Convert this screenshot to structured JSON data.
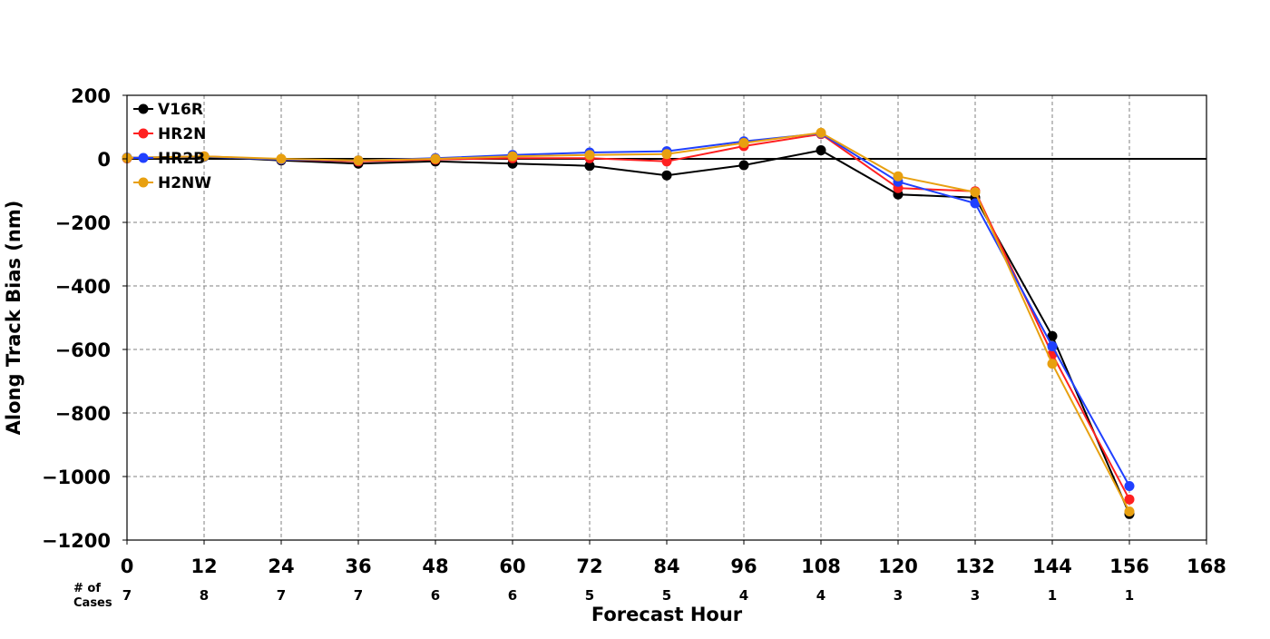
{
  "chart_data": {
    "type": "line",
    "title": "",
    "xlabel": "Forecast Hour",
    "ylabel": "Along Track Bias (nm)",
    "xlim": [
      0,
      168
    ],
    "ylim": [
      -1200,
      200
    ],
    "x_ticks": [
      0,
      12,
      24,
      36,
      48,
      60,
      72,
      84,
      96,
      108,
      120,
      132,
      144,
      156,
      168
    ],
    "y_ticks": [
      -1200,
      -1000,
      -800,
      -600,
      -400,
      -200,
      0,
      200
    ],
    "grid": true,
    "grid_style": "dashed",
    "zero_line": true,
    "legend_position": "top-left",
    "x": [
      0,
      12,
      24,
      36,
      48,
      60,
      72,
      84,
      96,
      108,
      120,
      132,
      144,
      156
    ],
    "series": [
      {
        "name": "V16R",
        "color": "#000000",
        "values": [
          2,
          7,
          -5,
          -15,
          -8,
          -15,
          -22,
          -52,
          -20,
          27,
          -112,
          -122,
          -558,
          -1118
        ]
      },
      {
        "name": "HR2N",
        "color": "#ff2020",
        "values": [
          2,
          8,
          -2,
          -8,
          -2,
          2,
          2,
          -8,
          40,
          78,
          -92,
          -102,
          -615,
          -1072
        ]
      },
      {
        "name": "HR2B",
        "color": "#2040ff",
        "values": [
          4,
          7,
          -2,
          -5,
          2,
          12,
          20,
          24,
          55,
          80,
          -72,
          -140,
          -590,
          -1030
        ]
      },
      {
        "name": "H2NW",
        "color": "#e8a010",
        "values": [
          3,
          8,
          0,
          -5,
          0,
          8,
          12,
          15,
          50,
          82,
          -55,
          -105,
          -645,
          -1110
        ]
      }
    ],
    "cases": {
      "header": "# of\nCases",
      "header_line1": "# of",
      "header_line2": "Cases",
      "x": [
        0,
        12,
        24,
        36,
        48,
        60,
        72,
        84,
        96,
        108,
        120,
        132,
        144,
        156
      ],
      "values": [
        "7",
        "8",
        "7",
        "7",
        "6",
        "6",
        "5",
        "5",
        "4",
        "4",
        "3",
        "3",
        "1",
        "1"
      ]
    }
  }
}
